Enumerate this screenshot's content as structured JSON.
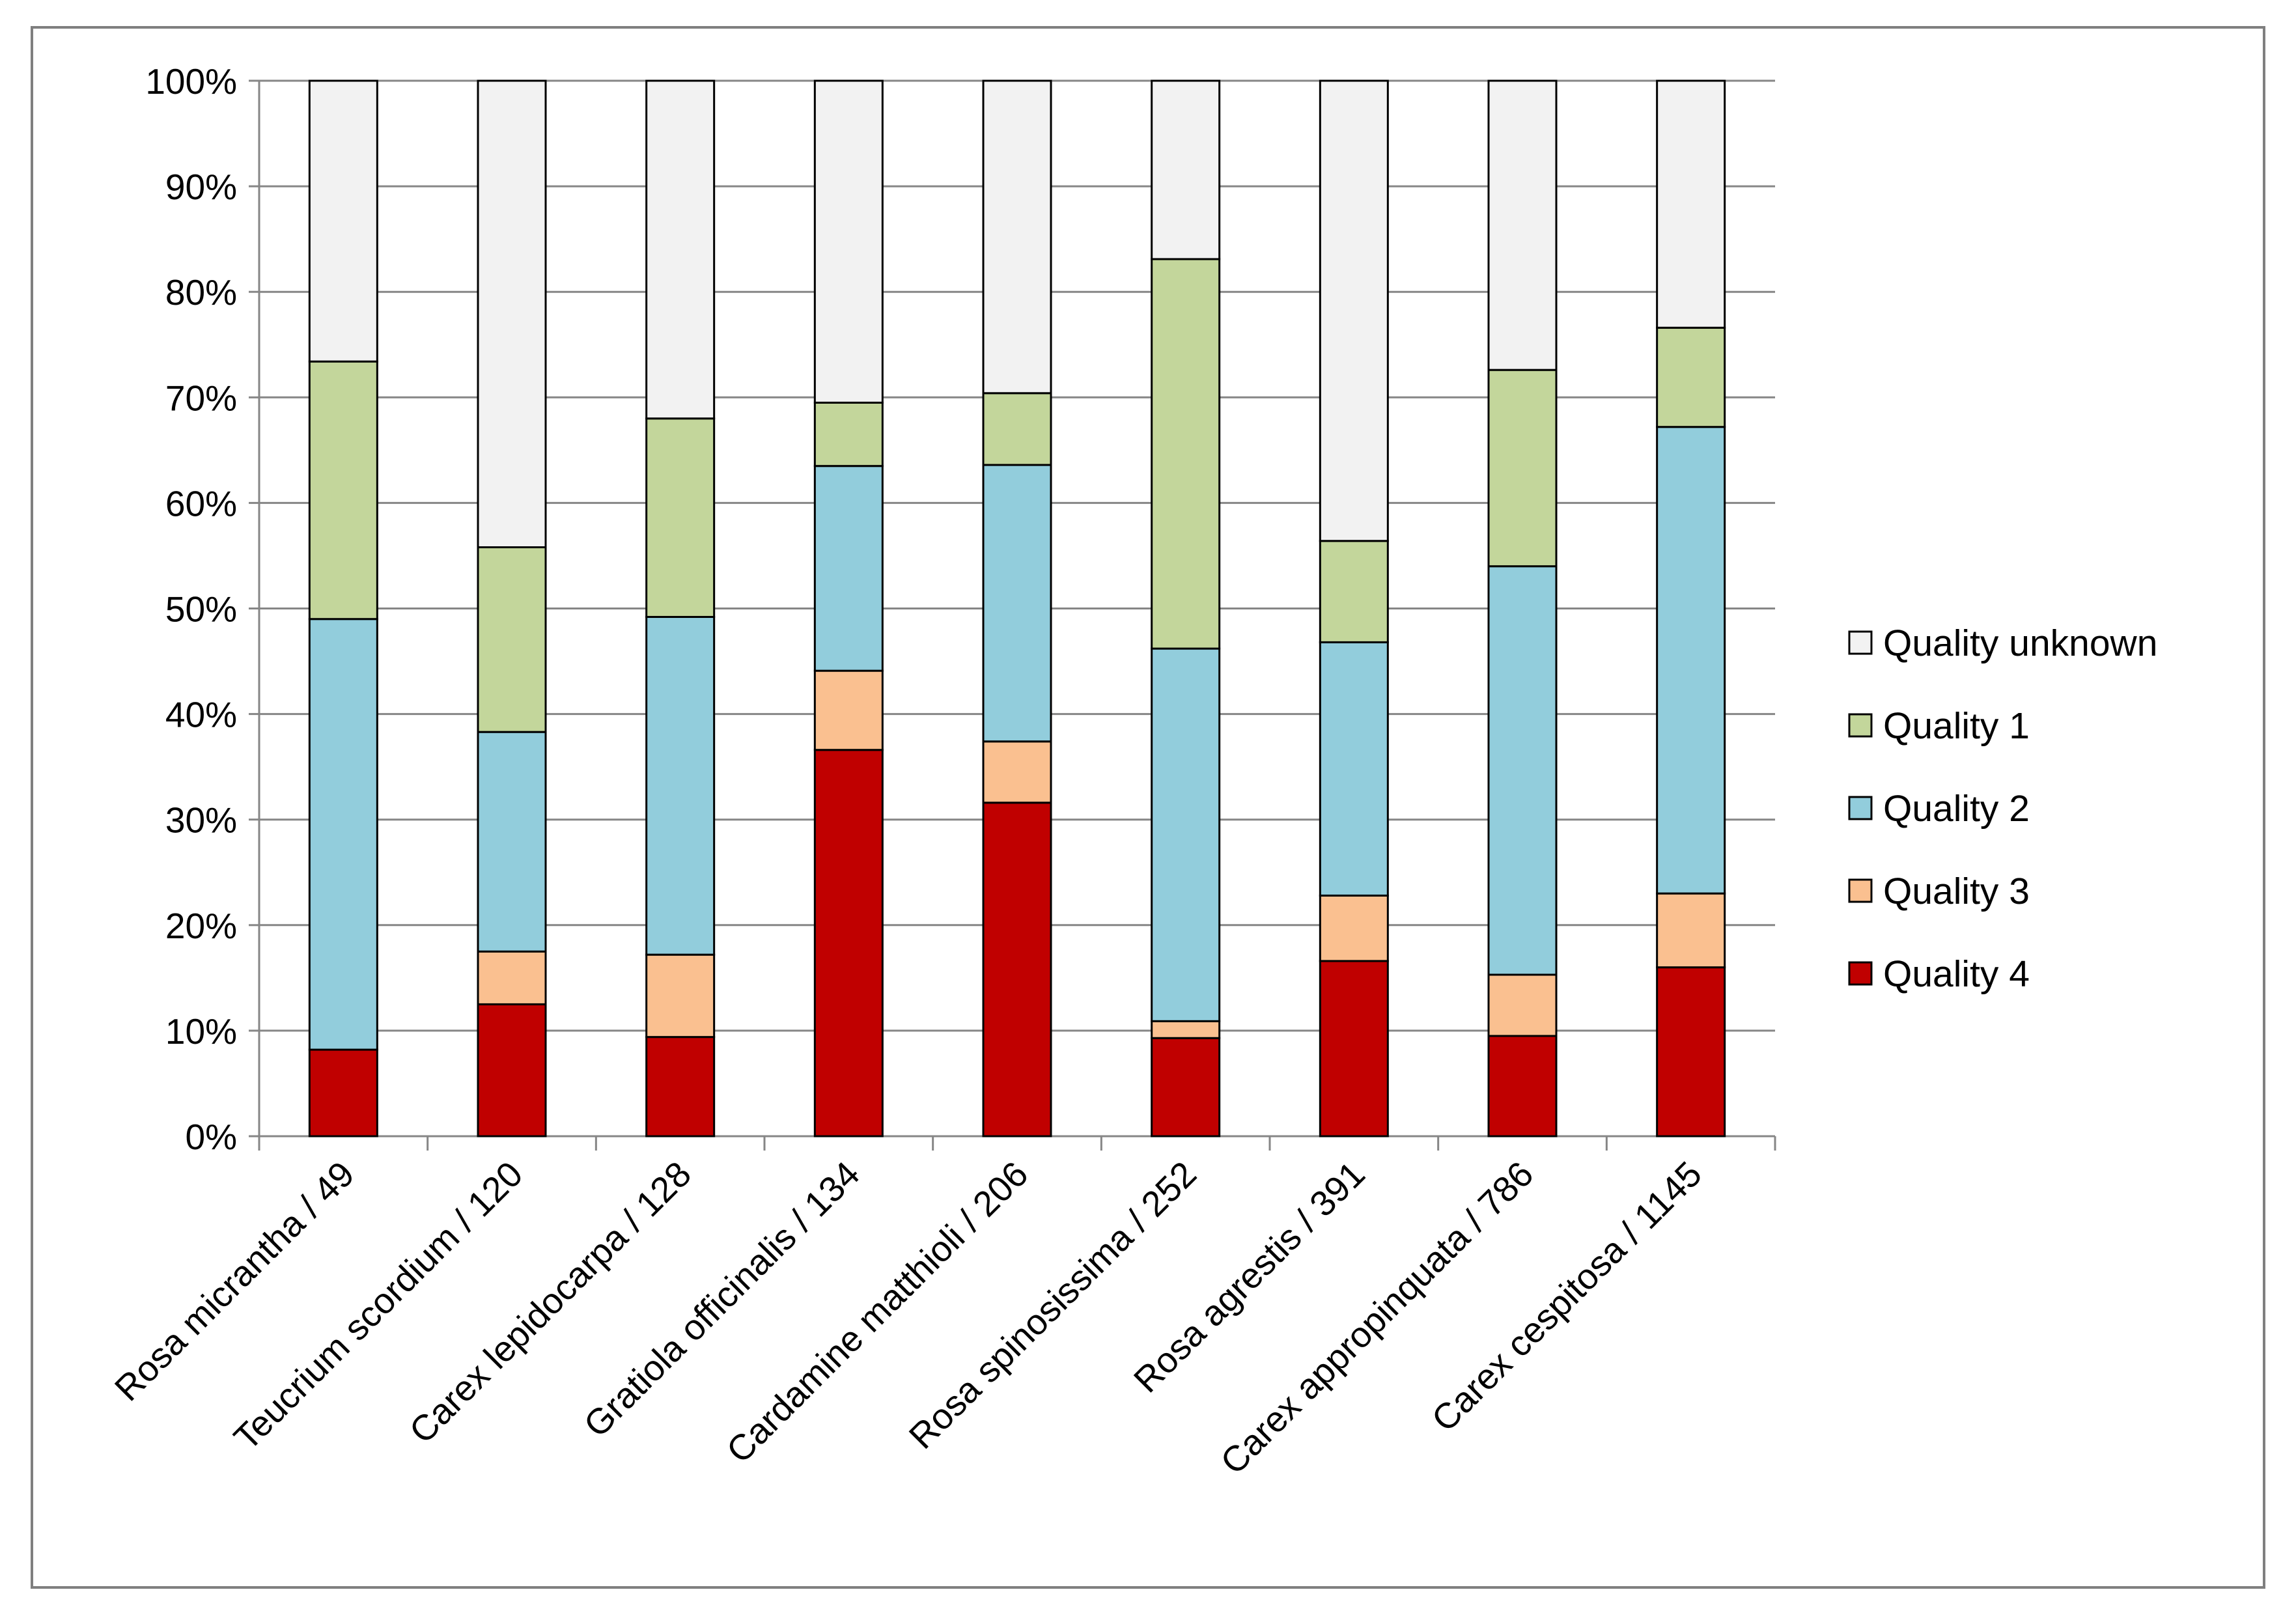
{
  "chart_data": {
    "type": "bar",
    "stacked": true,
    "percent": true,
    "categories": [
      "Rosa micrantha / 49",
      "Teucrium scordium / 120",
      "Carex lepidocarpa / 128",
      "Gratiola officinalis / 134",
      "Cardamine matthioli / 206",
      "Rosa spinosissima / 252",
      "Rosa agrestis / 391",
      "Carex appropinquata / 786",
      "Carex cespitosa / 1145"
    ],
    "series": [
      {
        "name": "Quality 4",
        "color": "#C00000",
        "values": [
          8.2,
          12.5,
          9.4,
          36.6,
          31.6,
          9.3,
          16.6,
          9.5,
          16.0
        ]
      },
      {
        "name": "Quality 3",
        "color": "#FAC090",
        "values": [
          0.0,
          5.0,
          7.8,
          7.5,
          5.8,
          1.6,
          6.2,
          5.8,
          7.0
        ]
      },
      {
        "name": "Quality 2",
        "color": "#92CDDC",
        "values": [
          40.8,
          20.8,
          32.0,
          19.4,
          26.2,
          35.3,
          24.0,
          38.7,
          44.2
        ]
      },
      {
        "name": "Quality 1",
        "color": "#C3D69B",
        "values": [
          24.4,
          17.5,
          18.8,
          6.0,
          6.8,
          36.9,
          9.6,
          18.6,
          9.4
        ]
      },
      {
        "name": "Quality unknown",
        "color": "#F2F2F2",
        "values": [
          26.6,
          44.2,
          32.0,
          30.5,
          29.6,
          16.9,
          43.6,
          27.4,
          23.4
        ]
      }
    ],
    "legend_order": [
      "Quality unknown",
      "Quality 1",
      "Quality 2",
      "Quality 3",
      "Quality 4"
    ],
    "y_ticks": [
      "0%",
      "10%",
      "20%",
      "30%",
      "40%",
      "50%",
      "60%",
      "70%",
      "80%",
      "90%",
      "100%"
    ],
    "ylim": [
      0,
      100
    ],
    "grid": true,
    "legend_position": "right",
    "title": "",
    "xlabel": "",
    "ylabel": ""
  }
}
